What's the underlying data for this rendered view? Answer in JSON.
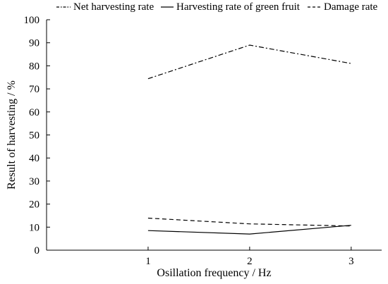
{
  "chart_data": {
    "type": "line",
    "title": "",
    "xlabel": "Osillation frequency / Hz",
    "ylabel": "Result of harvesting / %",
    "x": [
      1,
      2,
      3
    ],
    "x_tick_labels": [
      "1",
      "2",
      "3"
    ],
    "xlim": [
      0,
      3.3
    ],
    "ylim": [
      0,
      100
    ],
    "y_ticks": [
      0,
      10,
      20,
      30,
      40,
      50,
      60,
      70,
      80,
      90,
      100
    ],
    "y_tick_labels": [
      "0",
      "10",
      "20",
      "30",
      "40",
      "50",
      "60",
      "70",
      "80",
      "90",
      "100"
    ],
    "grid": false,
    "legend_position": "top",
    "series": [
      {
        "name": "Net harvesting rate",
        "style": "dash-dot",
        "color": "#000000",
        "values": [
          74.4,
          89,
          81
        ]
      },
      {
        "name": "Harvesting rate of green fruit",
        "style": "solid",
        "color": "#000000",
        "values": [
          8.5,
          7,
          10.8
        ]
      },
      {
        "name": "Damage rate",
        "style": "dashed",
        "color": "#000000",
        "values": [
          13.9,
          11.4,
          10.5
        ]
      }
    ]
  }
}
